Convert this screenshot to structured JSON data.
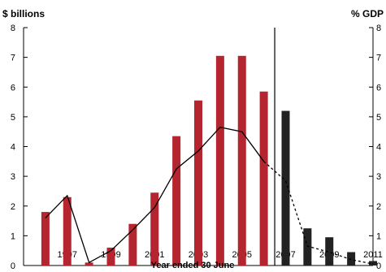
{
  "chart_data": {
    "type": "bar",
    "left_axis_unit": "$ billions",
    "right_axis_unit": "% GDP",
    "xlabel": "Year ended 30 June",
    "ylim": [
      0,
      8
    ],
    "y_ticks": [
      0,
      1,
      2,
      3,
      4,
      5,
      6,
      7,
      8
    ],
    "y2lim": [
      0,
      8
    ],
    "x_tick_labels": [
      "1997",
      "1999",
      "2001",
      "2003",
      "2005",
      "2007",
      "2009",
      "2011"
    ],
    "grid": false,
    "colors": {
      "actual": "#b5252f",
      "forecast": "#222222",
      "line": "#000000"
    },
    "series": [
      {
        "kind": "bar",
        "style": "actual",
        "x": [
          1996,
          1997,
          1998,
          1999,
          2000,
          2001,
          2002,
          2003,
          2004,
          2005,
          2006
        ],
        "values": [
          1.8,
          2.3,
          0.1,
          0.6,
          1.4,
          2.45,
          4.35,
          5.55,
          7.05,
          7.05,
          5.85
        ]
      },
      {
        "kind": "bar",
        "style": "forecast",
        "x": [
          2007,
          2008,
          2009,
          2010,
          2011
        ],
        "values": [
          5.2,
          1.25,
          0.95,
          0.45,
          0.15
        ]
      },
      {
        "kind": "line",
        "style": "solid",
        "axis": "right",
        "x": [
          1996,
          1997,
          1998,
          1999,
          2000,
          2001,
          2002,
          2003,
          2004,
          2005,
          2006
        ],
        "values": [
          1.6,
          2.35,
          0.1,
          0.5,
          1.2,
          1.95,
          3.25,
          3.85,
          4.65,
          4.5,
          3.5
        ]
      },
      {
        "kind": "line",
        "style": "dotted",
        "axis": "right",
        "x": [
          2006,
          2007,
          2008,
          2009,
          2010,
          2011
        ],
        "values": [
          3.5,
          2.85,
          0.65,
          0.45,
          0.2,
          0.05
        ]
      }
    ]
  }
}
